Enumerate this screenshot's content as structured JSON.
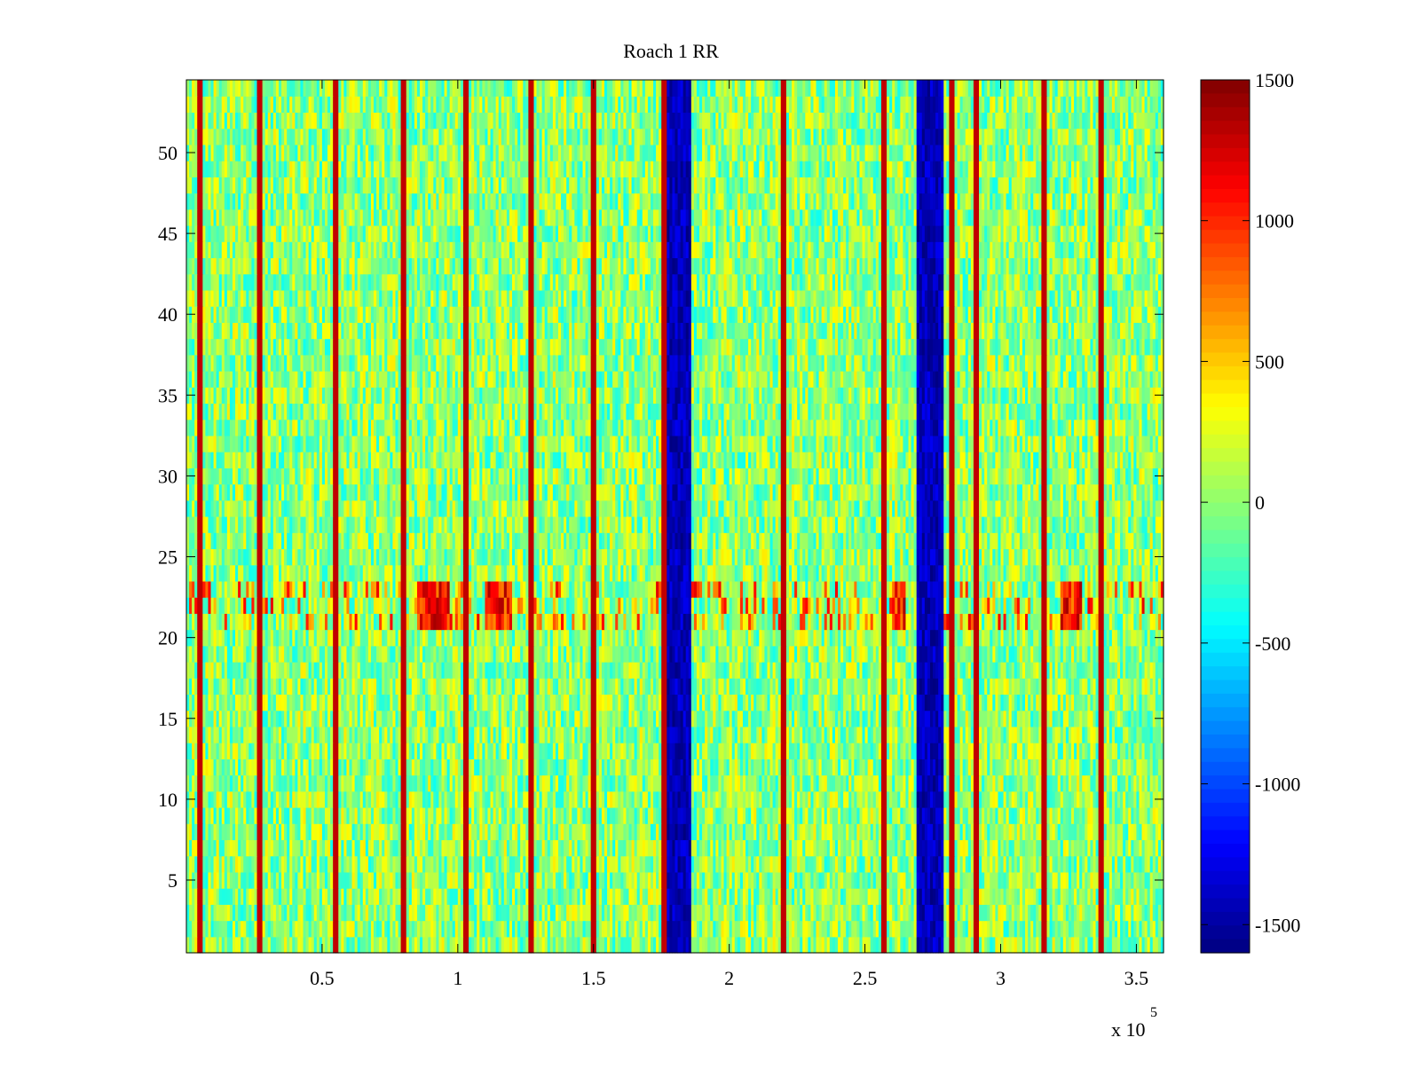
{
  "chart_data": {
    "type": "heatmap",
    "title": "Roach 1 RR",
    "xlabel": "",
    "ylabel": "",
    "x_exponent_label": "x 10",
    "x_exponent_power": "5",
    "xlim": [
      0,
      3.6
    ],
    "ylim": [
      0.5,
      54.5
    ],
    "x_ticks": [
      0.5,
      1,
      1.5,
      2,
      2.5,
      3,
      3.5
    ],
    "x_tick_labels": [
      "0.5",
      "1",
      "1.5",
      "2",
      "2.5",
      "3",
      "3.5"
    ],
    "y_ticks": [
      5,
      10,
      15,
      20,
      25,
      30,
      35,
      40,
      45,
      50
    ],
    "y_tick_labels": [
      "5",
      "10",
      "15",
      "20",
      "25",
      "30",
      "35",
      "40",
      "45",
      "50"
    ],
    "rows": 54,
    "colorscale": "jet",
    "clim": [
      -1600,
      1500
    ],
    "colorbar_ticks": [
      -1500,
      -1000,
      -500,
      0,
      500,
      1000,
      1500
    ],
    "colorbar_tick_labels": [
      "-1500",
      "-1000",
      "-500",
      "0",
      "500",
      "1000",
      "1500"
    ],
    "features": {
      "baseline_range": [
        -400,
        400
      ],
      "dark_blue_bands_x": [
        [
          1.77,
          1.86
        ],
        [
          2.69,
          2.79
        ]
      ],
      "dark_blue_band_value": -1600,
      "red_stripe_x": [
        0.05,
        0.27,
        0.55,
        0.8,
        1.03,
        1.27,
        1.5,
        1.76,
        2.2,
        2.57,
        2.82,
        2.91,
        3.16,
        3.37
      ],
      "red_stripe_value": 1300,
      "high_activity_rows": [
        21,
        22,
        23
      ],
      "high_activity_clusters_x": [
        [
          0.85,
          0.97
        ],
        [
          1.1,
          1.2
        ],
        [
          2.6,
          2.65
        ],
        [
          3.22,
          3.3
        ]
      ],
      "high_activity_value": 1400
    }
  }
}
